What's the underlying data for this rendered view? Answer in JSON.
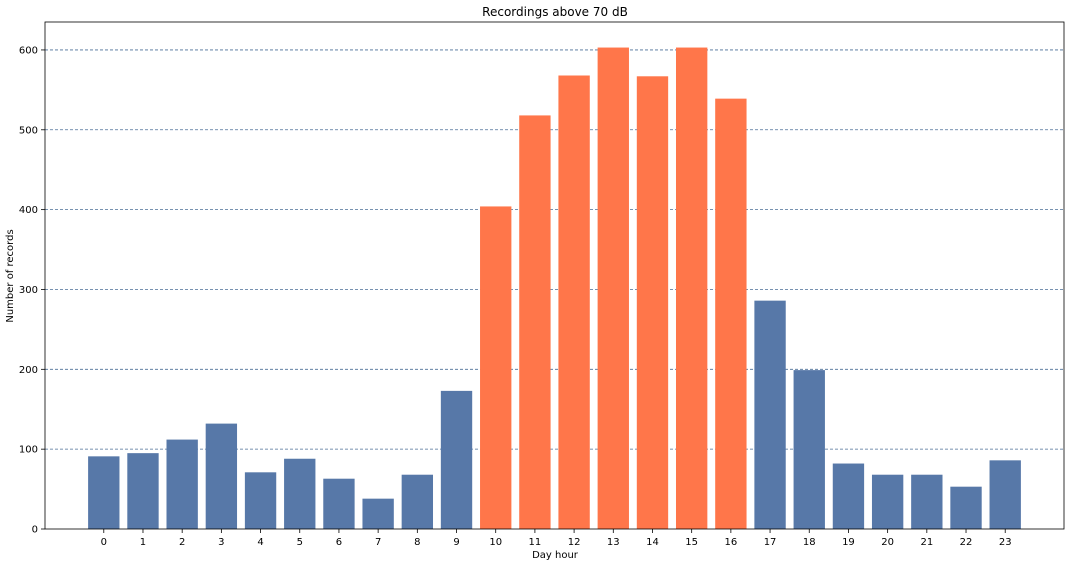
{
  "chart_data": {
    "type": "bar",
    "title": "Recordings above 70 dB",
    "xlabel": "Day hour",
    "ylabel": "Number of records",
    "categories": [
      "0",
      "1",
      "2",
      "3",
      "4",
      "5",
      "6",
      "7",
      "8",
      "9",
      "10",
      "11",
      "12",
      "13",
      "14",
      "15",
      "16",
      "17",
      "18",
      "19",
      "20",
      "21",
      "22",
      "23"
    ],
    "values": [
      91,
      95,
      112,
      132,
      71,
      88,
      63,
      38,
      68,
      173,
      404,
      518,
      568,
      603,
      567,
      603,
      539,
      286,
      199,
      82,
      68,
      68,
      53,
      86
    ],
    "highlighted_hours": [
      "10",
      "11",
      "12",
      "13",
      "14",
      "15",
      "16"
    ],
    "ylim": [
      0,
      635
    ],
    "yticks": [
      0,
      100,
      200,
      300,
      400,
      500,
      600
    ],
    "grid": "y-dashed",
    "colors": {
      "bar": "#5778a8",
      "highlight": "#ff764a",
      "grid": "#4a6e96",
      "axis": "#000000"
    }
  }
}
